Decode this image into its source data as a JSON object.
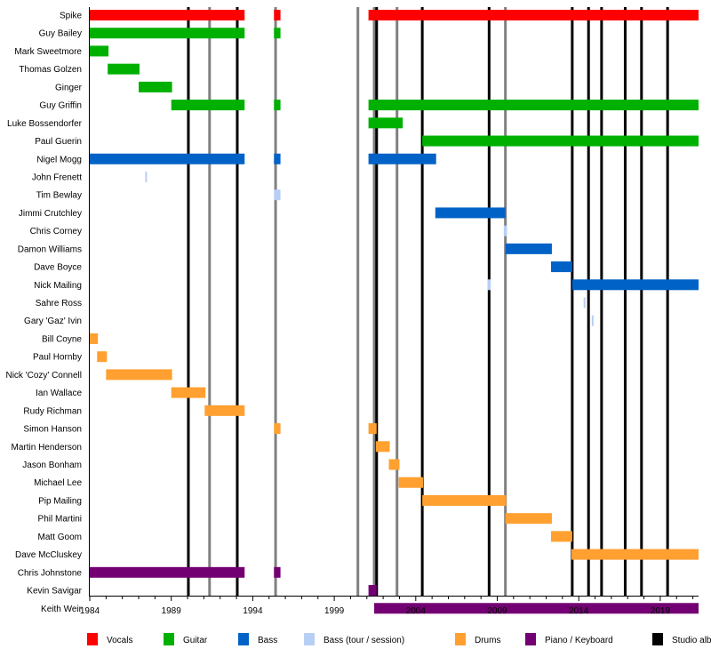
{
  "chart_data": {
    "type": "timeline",
    "xlim": [
      1984,
      2021.35
    ],
    "x_ticks": [
      "1984",
      "1989",
      "1994",
      "1999",
      "2004",
      "2009",
      "2014",
      "2019"
    ],
    "x_tick_values": [
      1984,
      1989,
      1994,
      1999,
      2004,
      2009,
      2014,
      2019
    ],
    "roles": {
      "vocals": {
        "label": "Vocals",
        "color": "#ff0000"
      },
      "guitar": {
        "label": "Guitar",
        "color": "#00b000"
      },
      "bass": {
        "label": "Bass",
        "color": "#0062c6"
      },
      "bass_tour": {
        "label": "Bass (tour / session)",
        "color": "#b8cff5"
      },
      "drums": {
        "label": "Drums",
        "color": "#ffa030"
      },
      "keys": {
        "label": "Piano / Keyboard",
        "color": "#730073"
      },
      "studio": {
        "label": "Studio alb",
        "color": "#000000"
      }
    },
    "legend_order": [
      "vocals",
      "guitar",
      "bass",
      "bass_tour",
      "drums",
      "keys",
      "studio"
    ],
    "studio_album_lines": [
      1990.05,
      1993.05,
      2001.6,
      2004.4,
      2008.5,
      2013.6,
      2014.6,
      2015.4,
      2016.85,
      2017.85,
      2019.45
    ],
    "other_release_lines": {
      "color": "#808080",
      "years": [
        1991.35,
        1995.4,
        2000.45,
        2001.45,
        2002.85,
        2009.5
      ]
    },
    "members": [
      {
        "name": "Spike",
        "bars": [
          [
            "vocals",
            1984,
            1993.5
          ],
          [
            "vocals",
            1995.3,
            1995.7
          ],
          [
            "vocals",
            2001.1,
            2021.35
          ]
        ]
      },
      {
        "name": "Guy Bailey",
        "bars": [
          [
            "guitar",
            1984,
            1993.5
          ],
          [
            "guitar",
            1995.3,
            1995.7
          ]
        ]
      },
      {
        "name": "Mark Sweetmore",
        "bars": [
          [
            "guitar",
            1984,
            1985.15
          ]
        ]
      },
      {
        "name": "Thomas Golzen",
        "bars": [
          [
            "guitar",
            1985.1,
            1987.05
          ]
        ]
      },
      {
        "name": "Ginger",
        "bars": [
          [
            "guitar",
            1987.0,
            1989.05
          ]
        ]
      },
      {
        "name": "Guy Griffin",
        "bars": [
          [
            "guitar",
            1989.0,
            1993.5
          ],
          [
            "guitar",
            1995.3,
            1995.7
          ],
          [
            "guitar",
            2001.1,
            2021.35
          ]
        ]
      },
      {
        "name": "Luke Bossendorfer",
        "bars": [
          [
            "guitar",
            2001.1,
            2003.2
          ]
        ]
      },
      {
        "name": "Paul Guerin",
        "bars": [
          [
            "guitar",
            2004.4,
            2021.35
          ]
        ]
      },
      {
        "name": "Nigel Mogg",
        "bars": [
          [
            "bass",
            1984,
            1993.5
          ],
          [
            "bass",
            1995.3,
            1995.7
          ],
          [
            "bass",
            2001.1,
            2005.25
          ]
        ]
      },
      {
        "name": "John Frenett",
        "bars": [
          [
            "bass_tour",
            1987.4,
            1987.5
          ]
        ]
      },
      {
        "name": "Tim Bewlay",
        "bars": [
          [
            "bass_tour",
            1995.3,
            1995.7
          ]
        ]
      },
      {
        "name": "Jimmi Crutchley",
        "bars": [
          [
            "bass",
            2005.2,
            2009.5
          ]
        ]
      },
      {
        "name": "Chris Corney",
        "bars": [
          [
            "bass_tour",
            2009.4,
            2009.6
          ]
        ]
      },
      {
        "name": "Damon Williams",
        "bars": [
          [
            "bass",
            2009.5,
            2012.35
          ]
        ]
      },
      {
        "name": "Dave Boyce",
        "bars": [
          [
            "bass",
            2012.3,
            2013.6
          ]
        ]
      },
      {
        "name": "Nick Mailing",
        "bars": [
          [
            "bass_tour",
            2008.4,
            2008.6
          ],
          [
            "bass",
            2013.6,
            2021.35
          ]
        ]
      },
      {
        "name": "Sahre Ross",
        "bars": [
          [
            "bass_tour",
            2014.3,
            2014.4
          ]
        ]
      },
      {
        "name": "Gary 'Gaz' Ivin",
        "bars": [
          [
            "bass_tour",
            2014.8,
            2014.9
          ]
        ]
      },
      {
        "name": "Bill Coyne",
        "bars": [
          [
            "drums",
            1984,
            1984.5
          ]
        ]
      },
      {
        "name": "Paul Hornby",
        "bars": [
          [
            "drums",
            1984.45,
            1985.05
          ]
        ]
      },
      {
        "name": "Nick 'Cozy' Connell",
        "bars": [
          [
            "drums",
            1985.0,
            1989.05
          ]
        ]
      },
      {
        "name": "Ian Wallace",
        "bars": [
          [
            "drums",
            1989.0,
            1991.1
          ]
        ]
      },
      {
        "name": "Rudy Richman",
        "bars": [
          [
            "drums",
            1991.05,
            1993.5
          ]
        ]
      },
      {
        "name": "Simon Hanson",
        "bars": [
          [
            "drums",
            1995.3,
            1995.7
          ],
          [
            "drums",
            2001.1,
            2001.6
          ]
        ]
      },
      {
        "name": "Martin Henderson",
        "bars": [
          [
            "drums",
            2001.55,
            2002.4
          ]
        ]
      },
      {
        "name": "Jason Bonham",
        "bars": [
          [
            "drums",
            2002.35,
            2003.0
          ]
        ]
      },
      {
        "name": "Michael Lee",
        "bars": [
          [
            "drums",
            2002.95,
            2004.45
          ]
        ]
      },
      {
        "name": "Pip Mailing",
        "bars": [
          [
            "drums",
            2004.4,
            2009.55
          ]
        ]
      },
      {
        "name": "Phil Martini",
        "bars": [
          [
            "drums",
            2009.5,
            2012.35
          ]
        ]
      },
      {
        "name": "Matt Goom",
        "bars": [
          [
            "drums",
            2012.3,
            2013.6
          ]
        ]
      },
      {
        "name": "Dave McCluskey",
        "bars": [
          [
            "drums",
            2013.55,
            2021.35
          ]
        ]
      },
      {
        "name": "Chris Johnstone",
        "bars": [
          [
            "keys",
            1984,
            1993.5
          ],
          [
            "keys",
            1995.3,
            1995.7
          ]
        ]
      },
      {
        "name": "Kevin Savigar",
        "bars": [
          [
            "keys",
            2001.1,
            2001.6
          ]
        ]
      },
      {
        "name": "Keith Weir",
        "bars": [
          [
            "keys",
            2001.45,
            2021.35
          ]
        ]
      }
    ]
  }
}
